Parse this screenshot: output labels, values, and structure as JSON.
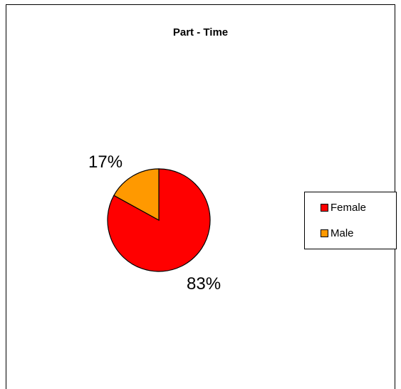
{
  "chart_data": {
    "type": "pie",
    "title": "Part - Time",
    "categories": [
      "Female",
      "Male"
    ],
    "values": [
      83,
      17
    ],
    "labels": [
      "83%",
      "17%"
    ],
    "colors": [
      "#ff0000",
      "#ff9900"
    ],
    "legend_position": "right"
  }
}
